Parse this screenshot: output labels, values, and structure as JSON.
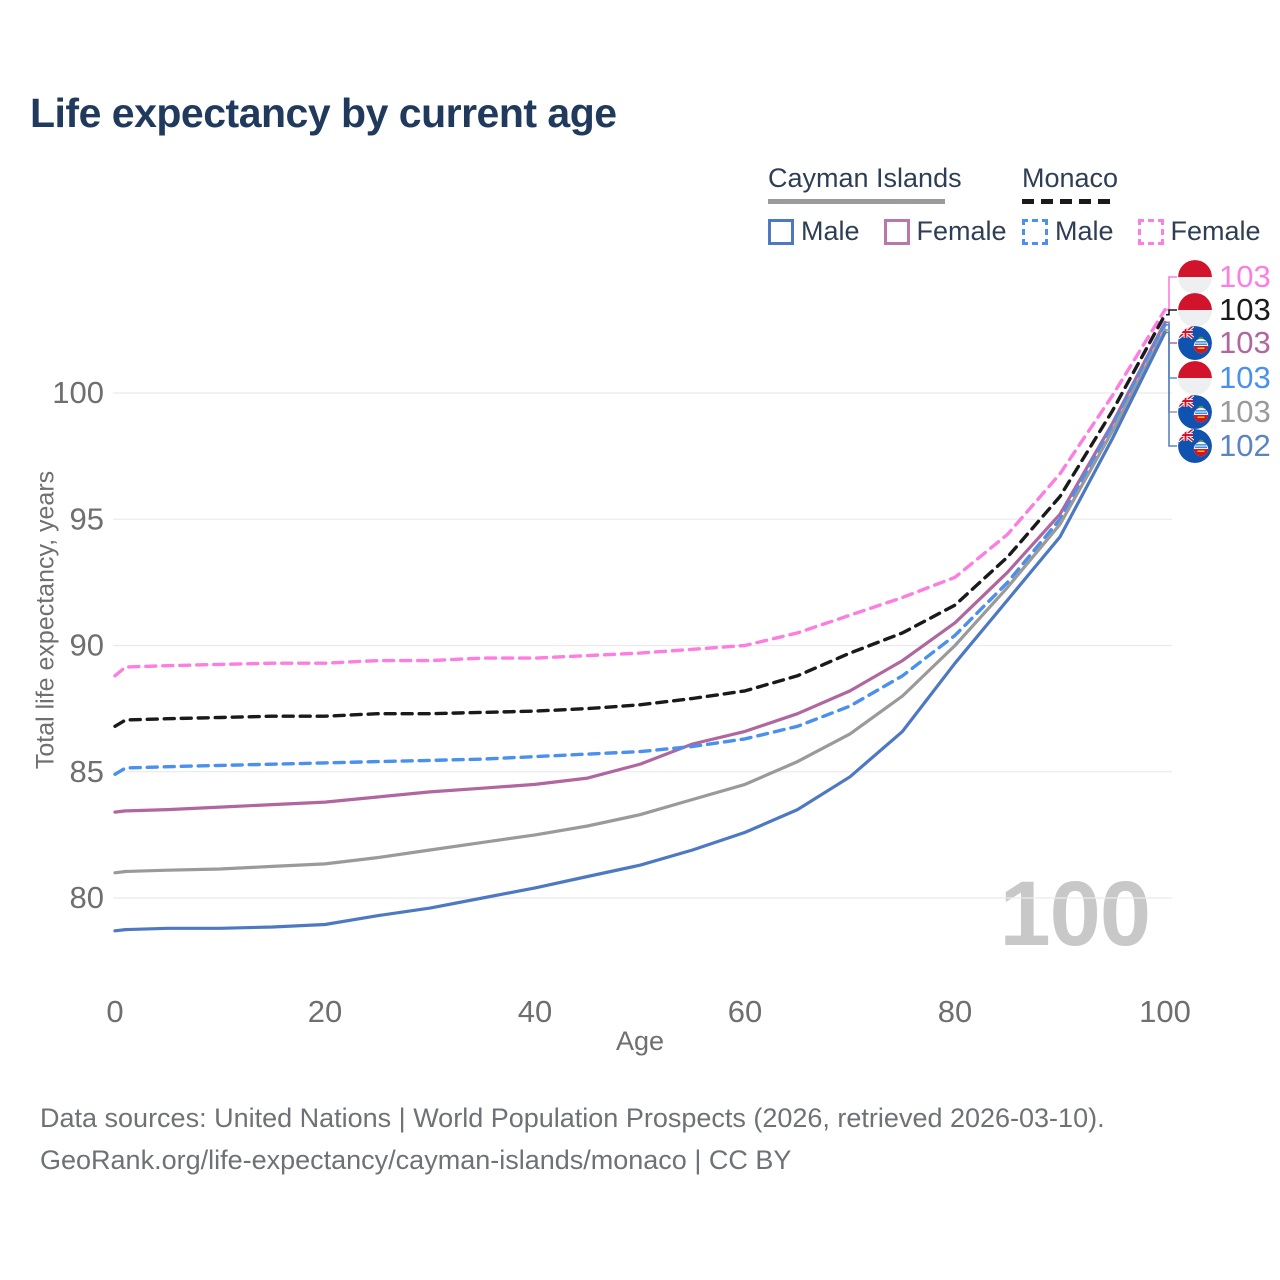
{
  "title": "Life expectancy by current age",
  "legend": {
    "groups": [
      {
        "name": "Cayman Islands",
        "line_style": "solid",
        "underline_color": "#9b9b9b",
        "items": [
          {
            "label": "Male",
            "color": "#4d79c2",
            "dashed": false
          },
          {
            "label": "Female",
            "color": "#b878ae",
            "dashed": false
          }
        ]
      },
      {
        "name": "Monaco",
        "line_style": "dashed",
        "underline_color": "#1a1a1a",
        "items": [
          {
            "label": "Male",
            "color": "#4a90ee",
            "dashed": true
          },
          {
            "label": "Female",
            "color": "#fb7ee0",
            "dashed": true
          }
        ]
      }
    ]
  },
  "chart_data": {
    "type": "line",
    "title": "Life expectancy by current age",
    "xlabel": "Age",
    "ylabel": "Total life expectancy, years",
    "xlim": [
      0,
      100
    ],
    "ylim": [
      78,
      104
    ],
    "x_ticks": [
      0,
      20,
      40,
      60,
      80,
      100
    ],
    "y_ticks": [
      80,
      85,
      90,
      95,
      100
    ],
    "grid": "horizontal-only",
    "legend_position": "top-right",
    "ages": [
      0,
      1,
      5,
      10,
      15,
      20,
      25,
      30,
      35,
      40,
      45,
      50,
      55,
      60,
      65,
      70,
      75,
      80,
      85,
      90,
      95,
      100
    ],
    "series": [
      {
        "id": "monaco-female",
        "name": "Monaco — Female",
        "color": "#fb7ee0",
        "dashed": true,
        "values": [
          88.8,
          89.15,
          89.2,
          89.25,
          89.3,
          89.3,
          89.4,
          89.4,
          89.5,
          89.5,
          89.6,
          89.7,
          89.85,
          90.0,
          90.5,
          91.2,
          91.9,
          92.7,
          94.4,
          96.8,
          99.9,
          103.3
        ]
      },
      {
        "id": "monaco-both",
        "name": "Monaco — Both sexes",
        "color": "#1a1a1a",
        "dashed": true,
        "values": [
          86.8,
          87.05,
          87.1,
          87.15,
          87.2,
          87.2,
          87.3,
          87.3,
          87.35,
          87.4,
          87.5,
          87.65,
          87.9,
          88.2,
          88.8,
          89.7,
          90.5,
          91.6,
          93.5,
          95.9,
          99.3,
          103.1
        ]
      },
      {
        "id": "cayman-female",
        "name": "Cayman Islands — Female",
        "color": "#b0679f",
        "dashed": false,
        "values": [
          83.4,
          83.45,
          83.5,
          83.6,
          83.7,
          83.8,
          84.0,
          84.2,
          84.35,
          84.5,
          84.75,
          85.3,
          86.1,
          86.6,
          87.3,
          88.2,
          89.4,
          90.9,
          92.9,
          95.2,
          98.8,
          102.8
        ]
      },
      {
        "id": "monaco-male",
        "name": "Monaco — Male",
        "color": "#4a90ee",
        "dashed": true,
        "values": [
          84.9,
          85.15,
          85.2,
          85.25,
          85.3,
          85.35,
          85.4,
          85.45,
          85.5,
          85.6,
          85.7,
          85.8,
          86.0,
          86.3,
          86.8,
          87.6,
          88.8,
          90.4,
          92.5,
          95.0,
          98.7,
          102.7
        ]
      },
      {
        "id": "cayman-both",
        "name": "Cayman Islands — Both sexes",
        "color": "#9a9a9a",
        "dashed": false,
        "values": [
          81.0,
          81.05,
          81.1,
          81.15,
          81.25,
          81.35,
          81.6,
          81.9,
          82.2,
          82.5,
          82.85,
          83.3,
          83.9,
          84.5,
          85.4,
          86.5,
          88.0,
          90.0,
          92.3,
          94.8,
          98.5,
          102.5
        ]
      },
      {
        "id": "cayman-male",
        "name": "Cayman Islands — Male",
        "color": "#4d79c2",
        "dashed": false,
        "values": [
          78.7,
          78.75,
          78.8,
          78.8,
          78.85,
          78.95,
          79.3,
          79.6,
          80.0,
          80.4,
          80.85,
          81.3,
          81.9,
          82.6,
          83.5,
          84.8,
          86.6,
          89.3,
          91.8,
          94.3,
          98.2,
          102.4
        ]
      }
    ]
  },
  "end_labels": [
    {
      "series_id": "monaco-female",
      "value": "103",
      "flag": "monaco",
      "color": "#fb7ee0",
      "y": 277
    },
    {
      "series_id": "monaco-both",
      "value": "103",
      "flag": "monaco",
      "color": "#1a1a1a",
      "y": 310
    },
    {
      "series_id": "cayman-female",
      "value": "103",
      "flag": "cayman-islands",
      "color": "#b0679f",
      "y": 343
    },
    {
      "series_id": "monaco-male",
      "value": "103",
      "flag": "monaco",
      "color": "#4a90ee",
      "y": 378
    },
    {
      "series_id": "cayman-both",
      "value": "103",
      "flag": "cayman-islands",
      "color": "#9a9a9a",
      "y": 412
    },
    {
      "series_id": "cayman-male",
      "value": "102",
      "flag": "cayman-islands",
      "color": "#5b84c4",
      "y": 446
    }
  ],
  "watermark": "100",
  "footer": {
    "line1": "Data sources: United Nations | World Population Prospects (2026, retrieved 2026-03-10).",
    "line2": "GeoRank.org/life-expectancy/cayman-islands/monaco | CC BY"
  }
}
